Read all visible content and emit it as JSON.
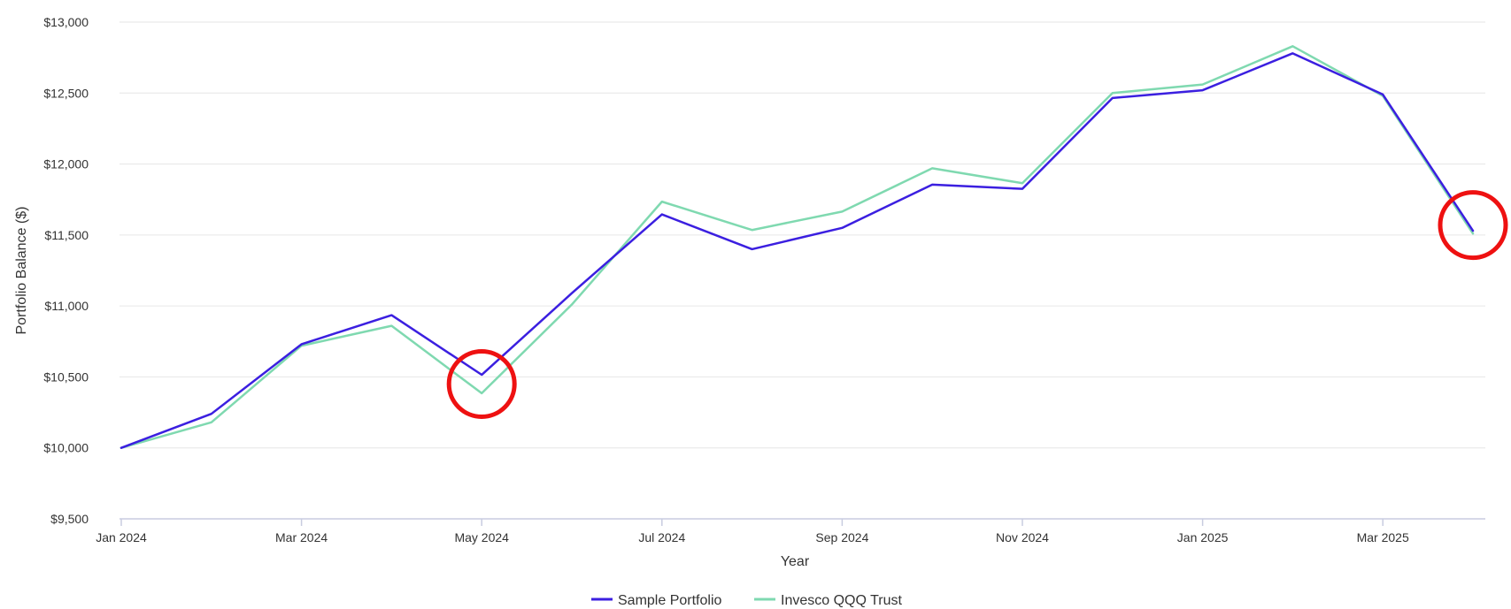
{
  "chart_data": {
    "type": "line",
    "title": "",
    "xlabel": "Year",
    "ylabel": "Portfolio Balance ($)",
    "ylim": [
      9500,
      13000
    ],
    "yticks": [
      9500,
      10000,
      10500,
      11000,
      11500,
      12000,
      12500,
      13000
    ],
    "ytick_labels": [
      "$9,500",
      "$10,000",
      "$10,500",
      "$11,000",
      "$11,500",
      "$12,000",
      "$12,500",
      "$13,000"
    ],
    "x": [
      "2024-01",
      "2024-02",
      "2024-03",
      "2024-04",
      "2024-05",
      "2024-06",
      "2024-07",
      "2024-08",
      "2024-09",
      "2024-10",
      "2024-11",
      "2024-12",
      "2025-01",
      "2025-02",
      "2025-03",
      "2025-04"
    ],
    "xtick_labels": [
      {
        "x": "2024-01",
        "label": "Jan 2024"
      },
      {
        "x": "2024-03",
        "label": "Mar 2024"
      },
      {
        "x": "2024-05",
        "label": "May 2024"
      },
      {
        "x": "2024-07",
        "label": "Jul 2024"
      },
      {
        "x": "2024-09",
        "label": "Sep 2024"
      },
      {
        "x": "2024-11",
        "label": "Nov 2024"
      },
      {
        "x": "2025-01",
        "label": "Jan 2025"
      },
      {
        "x": "2025-03",
        "label": "Mar 2025"
      }
    ],
    "grid": true,
    "legend_position": "bottom-center",
    "series": [
      {
        "name": "Sample Portfolio",
        "color": "#3b1fe0",
        "values": [
          10000,
          10240,
          10730,
          10935,
          10515,
          11090,
          11645,
          11400,
          11550,
          11855,
          11825,
          12465,
          12520,
          12780,
          12490,
          11530
        ]
      },
      {
        "name": "Invesco QQQ Trust",
        "color": "#7fd9b0",
        "values": [
          10000,
          10180,
          10720,
          10860,
          10385,
          11010,
          11735,
          11535,
          11665,
          11970,
          11865,
          12500,
          12560,
          12830,
          12480,
          11510
        ]
      }
    ],
    "annotations": [
      {
        "type": "circle",
        "x": "2024-05",
        "y": 10450,
        "color": "#ee1111"
      },
      {
        "type": "circle",
        "x": "2025-04",
        "y": 11570,
        "color": "#ee1111"
      }
    ]
  }
}
